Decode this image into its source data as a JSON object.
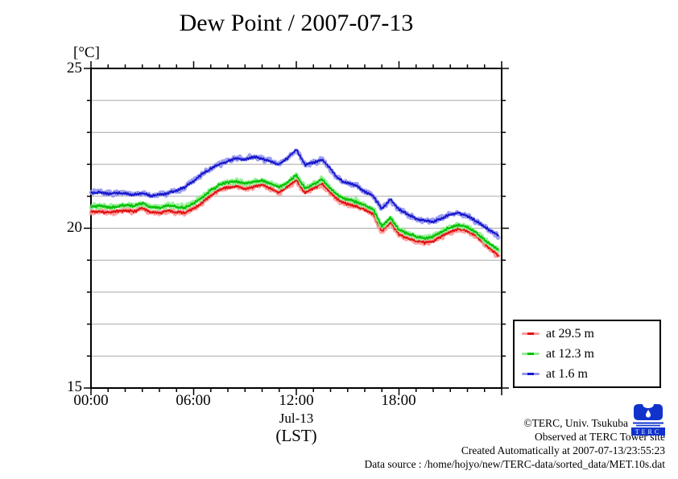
{
  "footer": {
    "copyright": "©TERC, Univ. Tsukuba",
    "observed": "Observed at TERC Tower site",
    "created": "Created Automatically at 2007-07-13/23:55:23",
    "source": "Data source : /home/hojyo/new/TERC-data/sorted_data/MET.10s.dat",
    "logo_text": "TERC",
    "logo_color": "#1133cc"
  },
  "chart_data": {
    "type": "line",
    "title": "Dew Point / 2007-07-13",
    "ylabel": "[°C]",
    "xlabel": "(LST)",
    "x_date": "Jul-13",
    "ylim": [
      15,
      25
    ],
    "x_range_hours": [
      0,
      24
    ],
    "y_tick_labels": [
      "25",
      "20",
      "15"
    ],
    "x_tick_labels": [
      "00:00",
      "06:00",
      "12:00",
      "18:00"
    ],
    "grid": "horizontal gray gridlines every 1 °C, no vertical gridlines",
    "legend_position": "outside bottom-right",
    "frame_color": "#000000",
    "grid_color": "#a9a9a9",
    "x_hours": [
      0,
      0.5,
      1,
      1.5,
      2,
      2.5,
      3,
      3.5,
      4,
      4.5,
      5,
      5.5,
      6,
      6.5,
      7,
      7.5,
      8,
      8.5,
      9,
      9.5,
      10,
      10.5,
      11,
      11.5,
      12,
      12.5,
      13,
      13.5,
      14,
      14.5,
      15,
      15.5,
      16,
      16.5,
      17,
      17.5,
      18,
      18.5,
      19,
      19.5,
      20,
      20.5,
      21,
      21.5,
      22,
      22.5,
      23,
      23.5,
      24
    ],
    "series": [
      {
        "name": "at 29.5 m",
        "height_m": 29.5,
        "color": "#e01010",
        "halo": "#ff9898",
        "values": [
          20.5,
          20.53,
          20.48,
          20.52,
          20.56,
          20.52,
          20.62,
          20.5,
          20.48,
          20.55,
          20.5,
          20.48,
          20.62,
          20.8,
          21.02,
          21.2,
          21.28,
          21.32,
          21.24,
          21.3,
          21.36,
          21.24,
          21.12,
          21.3,
          21.5,
          21.1,
          21.25,
          21.4,
          21.1,
          20.85,
          20.75,
          20.68,
          20.58,
          20.45,
          19.9,
          20.2,
          19.8,
          19.7,
          19.6,
          19.55,
          19.6,
          19.75,
          19.9,
          19.98,
          19.92,
          19.75,
          19.5,
          19.28,
          19.05
        ]
      },
      {
        "name": "at 12.3 m",
        "height_m": 12.3,
        "color": "#00c000",
        "halo": "#8fee8f",
        "values": [
          20.68,
          20.7,
          20.65,
          20.68,
          20.72,
          20.69,
          20.78,
          20.66,
          20.64,
          20.71,
          20.67,
          20.64,
          20.78,
          20.96,
          21.18,
          21.36,
          21.44,
          21.47,
          21.4,
          21.45,
          21.5,
          21.39,
          21.28,
          21.44,
          21.66,
          21.25,
          21.38,
          21.53,
          21.24,
          21.0,
          20.9,
          20.83,
          20.72,
          20.58,
          20.05,
          20.34,
          19.95,
          19.84,
          19.74,
          19.69,
          19.74,
          19.89,
          20.02,
          20.1,
          20.03,
          19.87,
          19.64,
          19.44,
          19.25
        ]
      },
      {
        "name": "at 1.6 m",
        "height_m": 1.6,
        "color": "#1515cc",
        "halo": "#9595ee",
        "values": [
          21.1,
          21.12,
          21.07,
          21.11,
          21.09,
          21.05,
          21.11,
          21.01,
          21.05,
          21.1,
          21.17,
          21.3,
          21.48,
          21.7,
          21.86,
          22.0,
          22.1,
          22.2,
          22.14,
          22.24,
          22.18,
          22.08,
          22.0,
          22.2,
          22.45,
          22.0,
          22.05,
          22.15,
          21.85,
          21.52,
          21.42,
          21.34,
          21.15,
          21.0,
          20.6,
          20.9,
          20.58,
          20.44,
          20.3,
          20.24,
          20.2,
          20.32,
          20.42,
          20.48,
          20.38,
          20.22,
          20.04,
          19.88,
          19.68
        ]
      }
    ]
  }
}
